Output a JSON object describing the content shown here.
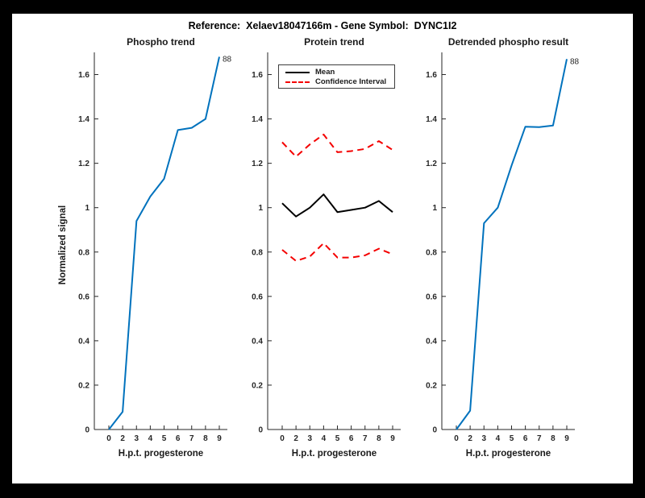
{
  "figure": {
    "title": "Reference:  Xelaev18047166m - Gene Symbol:  DYNC1I2"
  },
  "colors": {
    "blue": "#0072BD",
    "red": "#F40000",
    "black": "#000000",
    "axis": "#262626"
  },
  "chart_data": [
    {
      "type": "line",
      "title": "Phospho trend",
      "xlabel": "H.p.t. progesterone",
      "ylabel": "Normalized signal",
      "x": [
        0,
        2,
        3,
        4,
        5,
        6,
        7,
        8,
        9
      ],
      "x_ticklabels": [
        "0",
        "2",
        "3",
        "4",
        "5",
        "6",
        "7",
        "8",
        "9"
      ],
      "ylim": [
        0,
        1.7
      ],
      "y_ticks": [
        0,
        0.2,
        0.4,
        0.6,
        0.8,
        1,
        1.2,
        1.4,
        1.6
      ],
      "y_ticklabels": [
        "0",
        "0.2",
        "0.4",
        "0.6",
        "0.8",
        "1",
        "1.2",
        "1.4",
        "1.6"
      ],
      "grid": false,
      "box": false,
      "series": [
        {
          "name": "Phospho signal",
          "color": "#0072BD",
          "style": "solid",
          "values": [
            0,
            0.08,
            0.94,
            1.05,
            1.13,
            1.35,
            1.36,
            1.4,
            1.68
          ]
        }
      ],
      "annotation": {
        "text": "88",
        "value": 1.68
      }
    },
    {
      "type": "line",
      "title": "Protein trend",
      "xlabel": "H.p.t. progesterone",
      "ylabel": "",
      "x": [
        0,
        2,
        3,
        4,
        5,
        6,
        7,
        8,
        9
      ],
      "x_ticklabels": [
        "0",
        "2",
        "3",
        "4",
        "5",
        "6",
        "7",
        "8",
        "9"
      ],
      "ylim": [
        0,
        1.7
      ],
      "y_ticks": [
        0,
        0.2,
        0.4,
        0.6,
        0.8,
        1,
        1.2,
        1.4,
        1.6
      ],
      "y_ticklabels": [
        "0",
        "0.2",
        "0.4",
        "0.6",
        "0.8",
        "1",
        "1.2",
        "1.4",
        "1.6"
      ],
      "grid": false,
      "box": false,
      "legend": {
        "position": "top-left",
        "entries": [
          {
            "label": "Mean",
            "style": "solid",
            "color": "#000000"
          },
          {
            "label": "Confidence Interval",
            "style": "dashed",
            "color": "#F40000"
          }
        ]
      },
      "series": [
        {
          "name": "Mean",
          "color": "#000000",
          "style": "solid",
          "values": [
            1.02,
            0.96,
            1.0,
            1.06,
            0.98,
            0.99,
            1.0,
            1.03,
            0.98
          ]
        },
        {
          "name": "Confidence Interval upper",
          "color": "#F40000",
          "style": "dashed",
          "values": [
            1.295,
            1.23,
            1.285,
            1.33,
            1.25,
            1.255,
            1.265,
            1.3,
            1.26
          ]
        },
        {
          "name": "Confidence Interval lower",
          "color": "#F40000",
          "style": "dashed",
          "values": [
            0.81,
            0.76,
            0.78,
            0.84,
            0.775,
            0.775,
            0.785,
            0.815,
            0.79
          ]
        }
      ]
    },
    {
      "type": "line",
      "title": "Detrended phospho result",
      "xlabel": "H.p.t. progesterone",
      "ylabel": "",
      "x": [
        0,
        2,
        3,
        4,
        5,
        6,
        7,
        8,
        9
      ],
      "x_ticklabels": [
        "0",
        "2",
        "3",
        "4",
        "5",
        "6",
        "7",
        "8",
        "9"
      ],
      "ylim": [
        0,
        1.7
      ],
      "y_ticks": [
        0,
        0.2,
        0.4,
        0.6,
        0.8,
        1,
        1.2,
        1.4,
        1.6
      ],
      "y_ticklabels": [
        "0",
        "0.2",
        "0.4",
        "0.6",
        "0.8",
        "1",
        "1.2",
        "1.4",
        "1.6"
      ],
      "grid": false,
      "box": false,
      "series": [
        {
          "name": "Detrended phospho signal",
          "color": "#0072BD",
          "style": "solid",
          "values": [
            0,
            0.085,
            0.93,
            1.0,
            1.19,
            1.365,
            1.363,
            1.37,
            1.67
          ]
        }
      ],
      "annotation": {
        "text": "88",
        "value": 1.67
      }
    }
  ]
}
